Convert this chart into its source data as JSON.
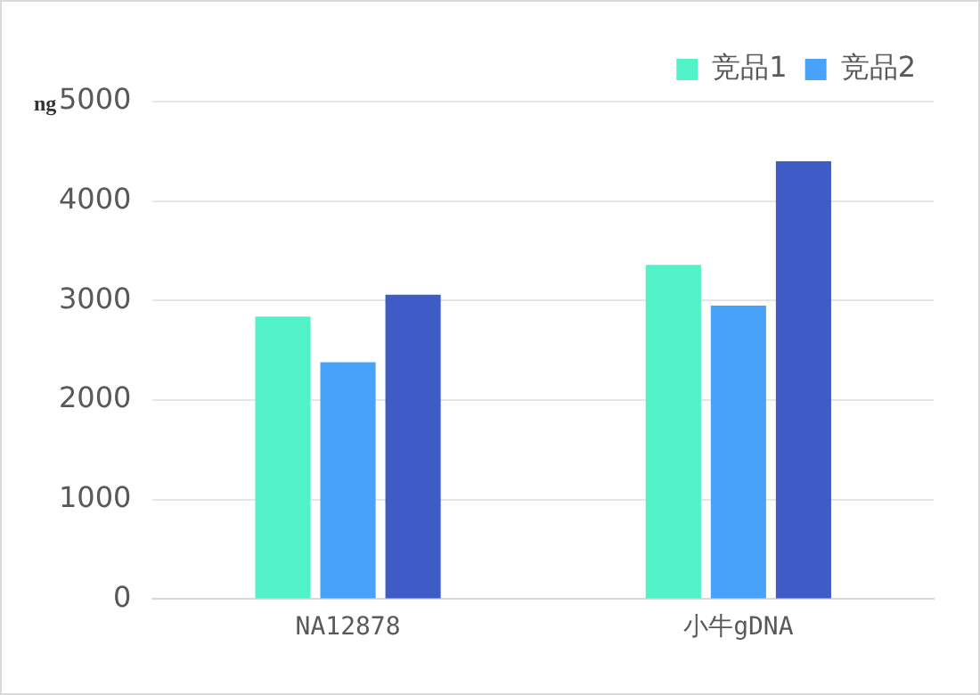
{
  "chart_data": {
    "type": "bar",
    "ylabel": "ng",
    "categories": [
      "NA12878",
      "小牛gDNA"
    ],
    "series": [
      {
        "name": "竞品1",
        "color": "#52f2c9",
        "values": [
          2840,
          3360
        ]
      },
      {
        "name": "竞品2",
        "color": "#48a2fa",
        "values": [
          2380,
          2950
        ]
      },
      {
        "color": "#3f5bc6",
        "values": [
          3060,
          4400
        ]
      }
    ],
    "ylim": [
      0,
      5000
    ],
    "yticks": [
      0,
      1000,
      2000,
      3000,
      4000,
      5000
    ],
    "grid": "y",
    "legend": "top right"
  }
}
